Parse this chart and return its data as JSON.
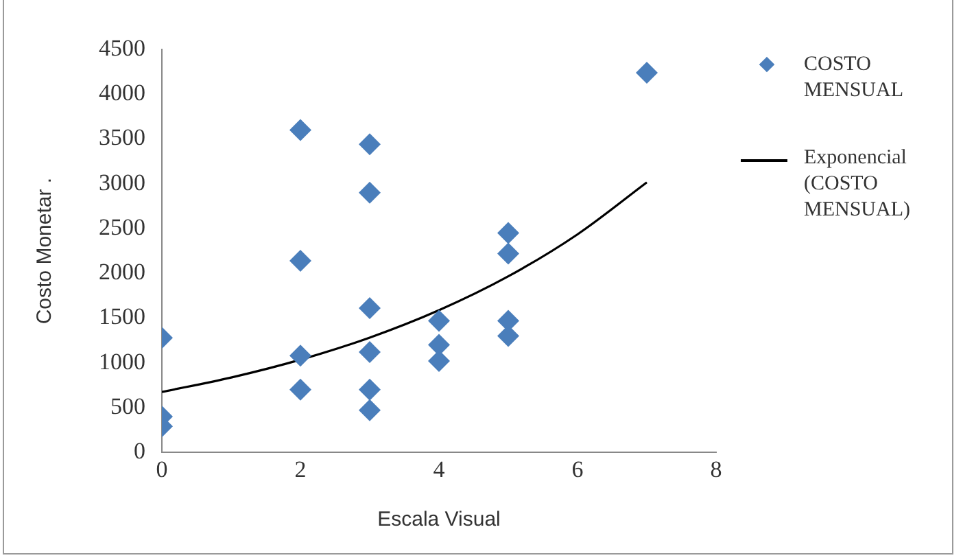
{
  "chart_data": {
    "type": "scatter",
    "xlabel": "Escala Visual",
    "ylabel": "Costo Monetar .",
    "xlim": [
      0,
      8
    ],
    "xticks": [
      0,
      2,
      4,
      6,
      8
    ],
    "ylim": [
      0,
      4500
    ],
    "yticks": [
      0,
      500,
      1000,
      1500,
      2000,
      2500,
      3000,
      3500,
      4000,
      4500
    ],
    "grid": false,
    "legend": "right",
    "marker": "diamond",
    "series": [
      {
        "name": "COSTO MENSUAL",
        "color": "#4a7ebb",
        "x": [
          0,
          0,
          0,
          2,
          2,
          2,
          2,
          3,
          3,
          3,
          3,
          3,
          3,
          4,
          4,
          4,
          5,
          5,
          5,
          5,
          7
        ],
        "values": [
          1280,
          400,
          290,
          3600,
          2140,
          1080,
          700,
          3440,
          2900,
          1610,
          1120,
          700,
          470,
          1470,
          1200,
          1020,
          2450,
          2220,
          1470,
          1300,
          4240
        ]
      },
      {
        "name": "Exponencial (COSTO MENSUAL)",
        "type": "line",
        "color": "#000000",
        "marker": "none",
        "x": [
          0,
          1,
          2,
          3,
          4,
          5,
          6,
          7
        ],
        "values": [
          675,
          836,
          1035,
          1282,
          1588,
          1966,
          2435,
          3015
        ]
      }
    ]
  }
}
